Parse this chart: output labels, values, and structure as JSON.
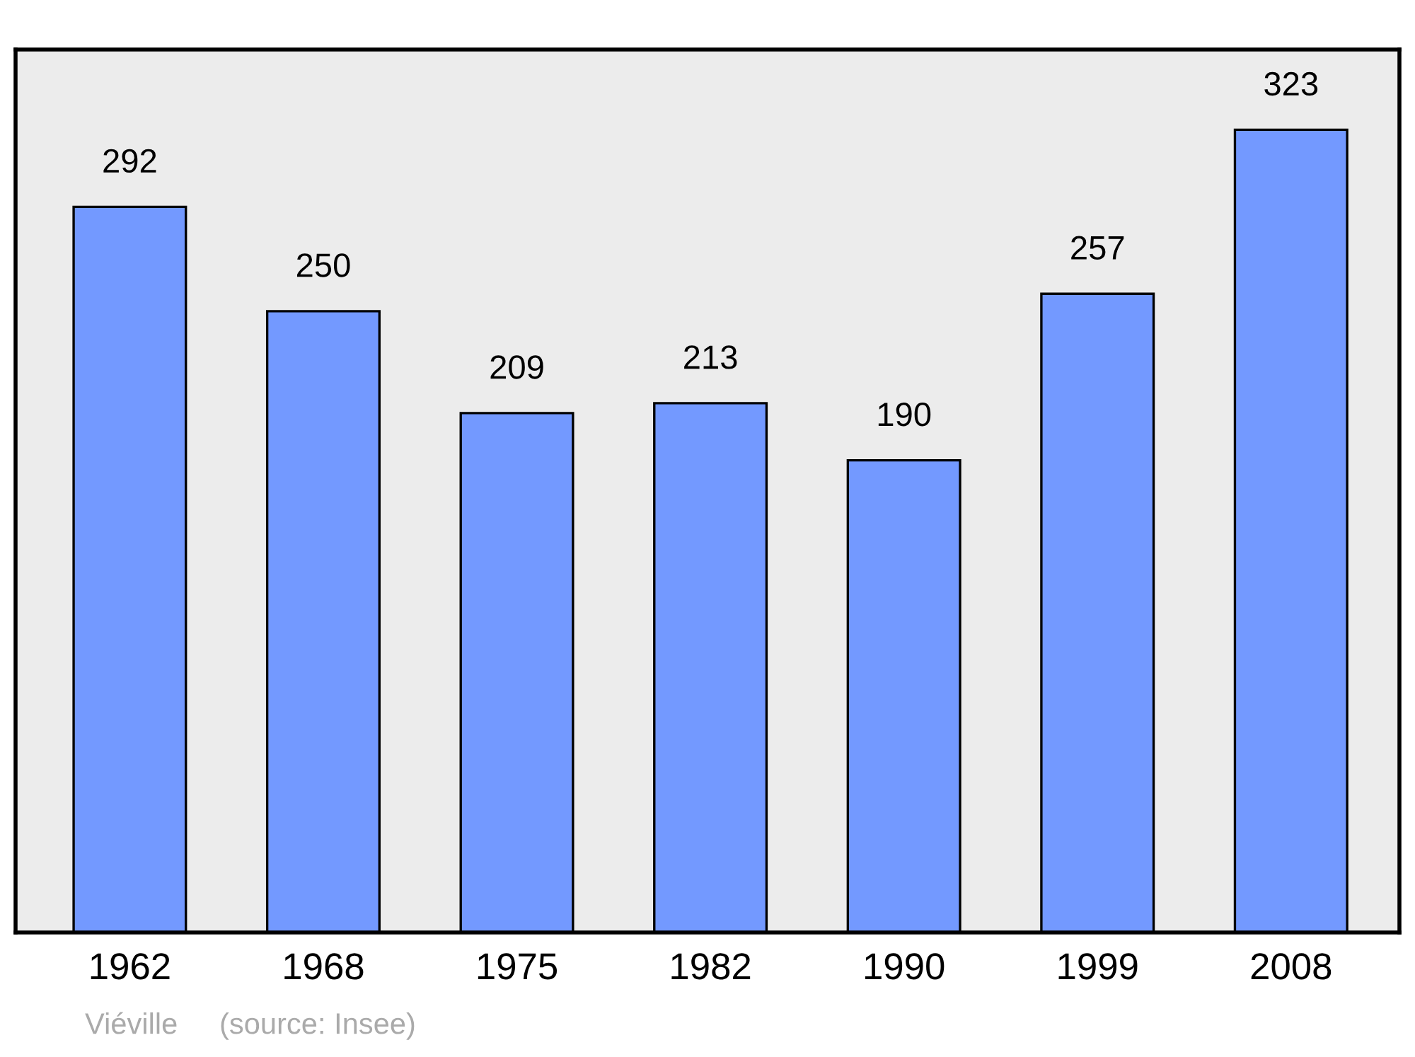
{
  "chart_data": {
    "type": "bar",
    "categories": [
      "1962",
      "1968",
      "1975",
      "1982",
      "1990",
      "1999",
      "2008"
    ],
    "values": [
      292,
      250,
      209,
      213,
      190,
      257,
      323
    ],
    "color": "#7399ff",
    "data_labels": true,
    "tick_labels": "x",
    "annotations": [
      "Viéville",
      "(source: Insee)"
    ]
  }
}
